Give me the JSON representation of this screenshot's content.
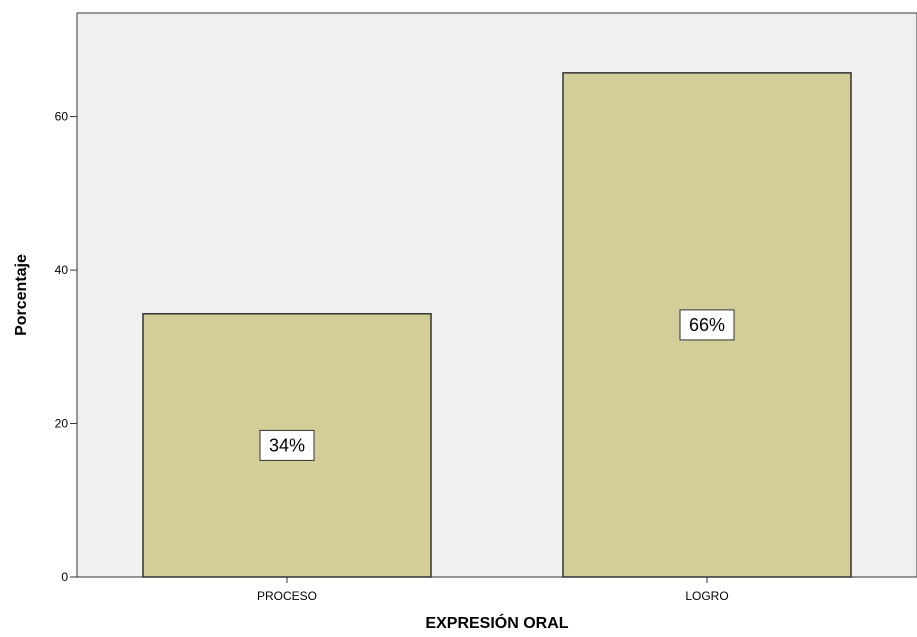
{
  "chart_data": {
    "type": "bar",
    "categories": [
      "PROCESO",
      "LOGRO"
    ],
    "values": [
      34.3,
      65.7
    ],
    "data_labels": [
      "34%",
      "66%"
    ],
    "xlabel": "EXPRESIÓN ORAL",
    "ylabel": "Porcentaje",
    "ylim": [
      0,
      73.5
    ],
    "yticks": [
      0,
      20,
      40,
      60
    ],
    "grid": false,
    "legend": "none",
    "colors": {
      "plot_background": "#f0f0f0",
      "bar_fill": "#d3cd98",
      "bar_stroke": "#333333",
      "label_box_fill": "#ffffff"
    }
  }
}
